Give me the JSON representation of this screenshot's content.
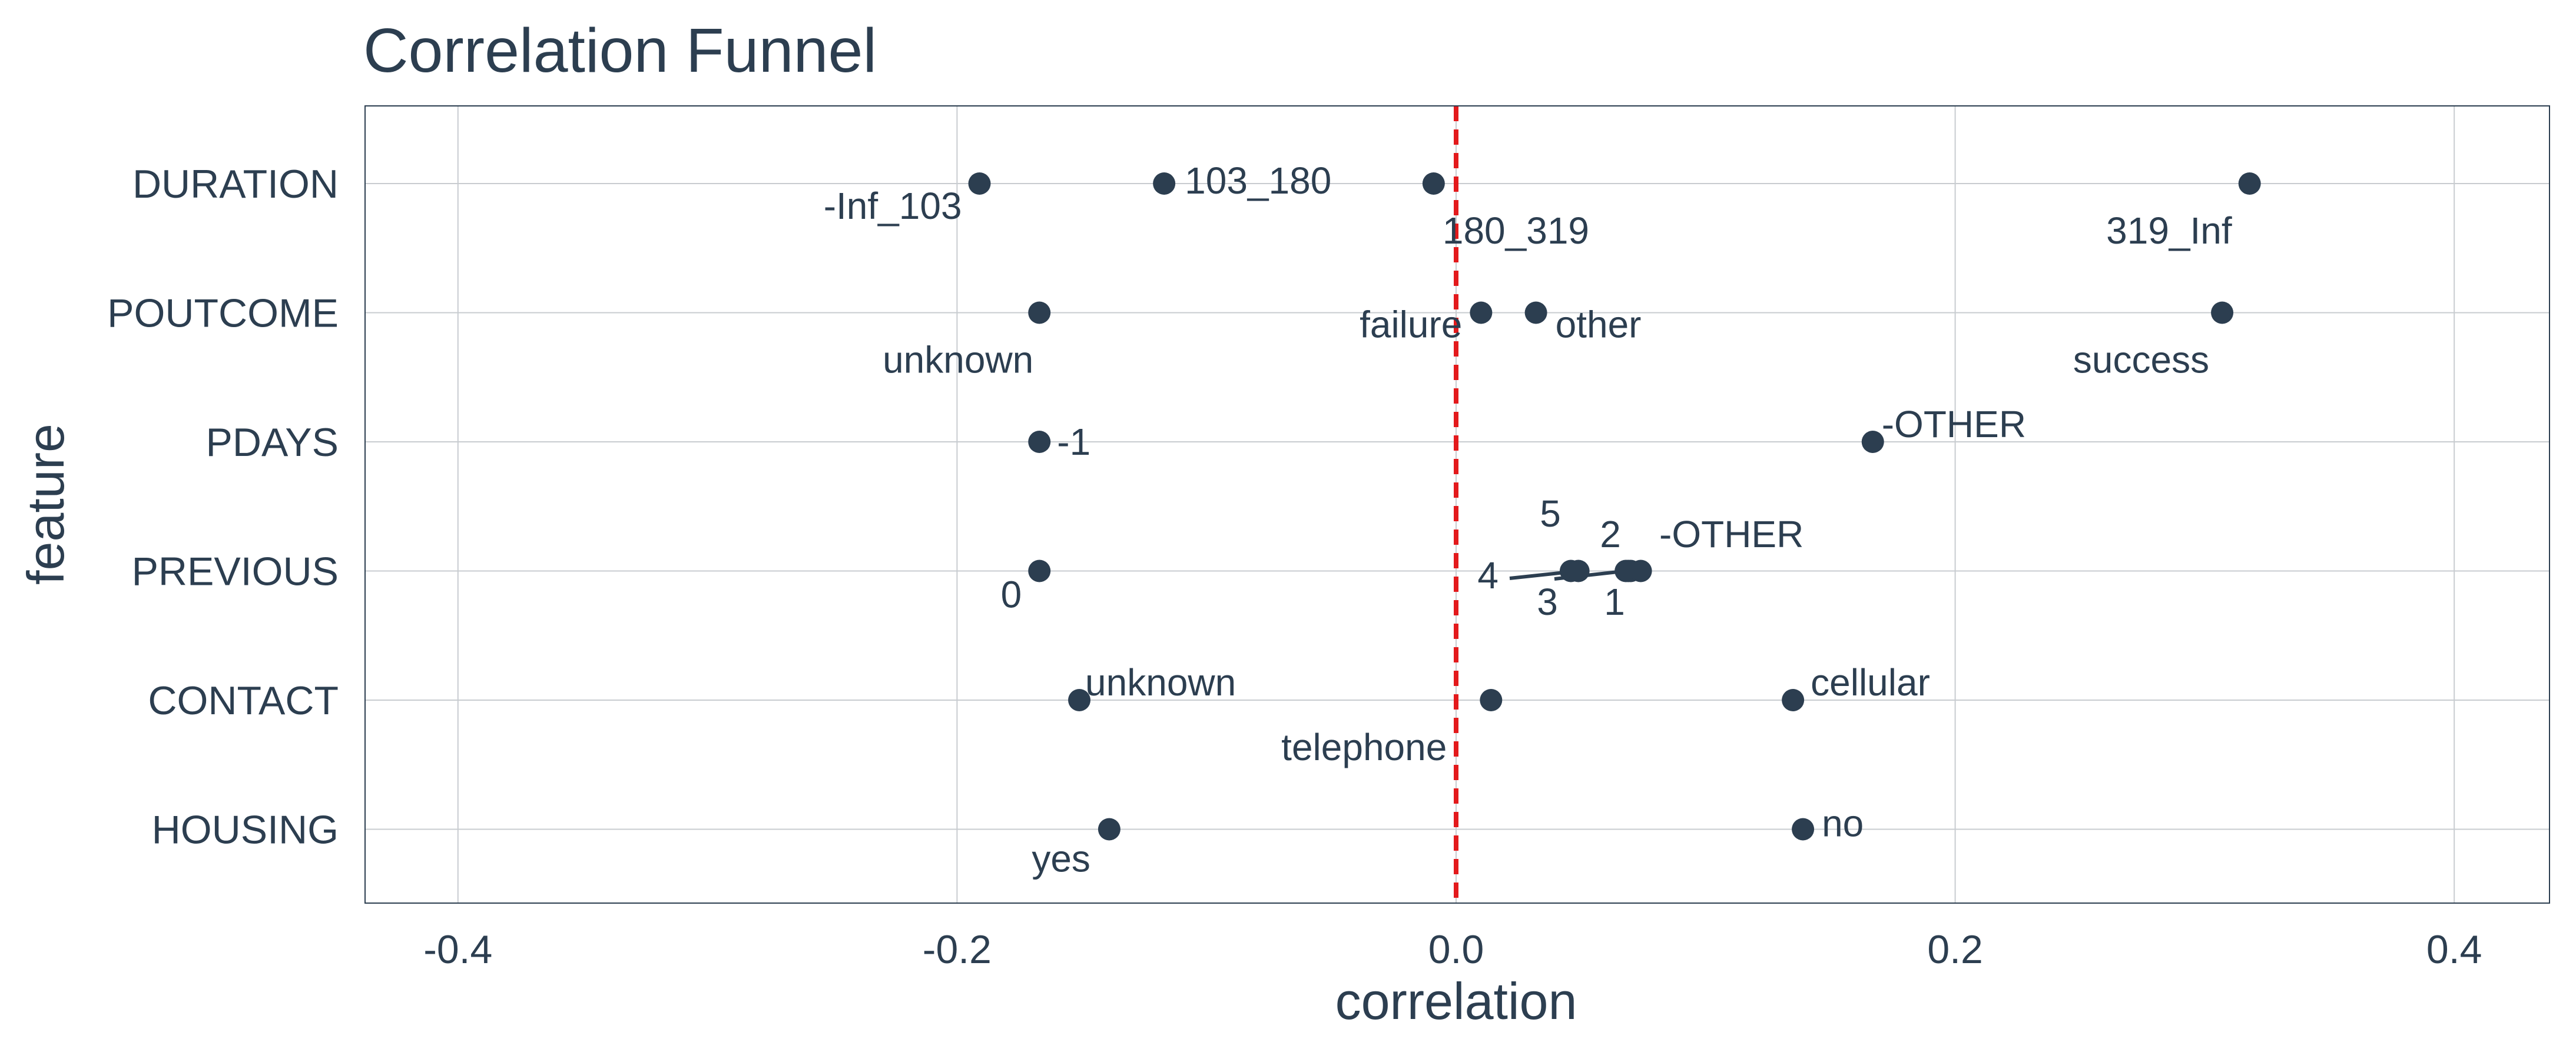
{
  "chart_data": {
    "type": "scatter",
    "title": "Correlation Funnel",
    "xlabel": "correlation",
    "ylabel": "feature",
    "xlim": [
      -0.44,
      0.44
    ],
    "x_ticks": [
      -0.4,
      -0.2,
      0.0,
      0.2,
      0.4
    ],
    "x_tick_labels": [
      "-0.4",
      "-0.2",
      "0.0",
      "0.2",
      "0.4"
    ],
    "features": [
      "DURATION",
      "POUTCOME",
      "PDAYS",
      "PREVIOUS",
      "CONTACT",
      "HOUSING"
    ],
    "grid": true,
    "reference_line": {
      "x": 0.0,
      "color": "#e31a1c",
      "style": "dashed"
    },
    "point_color": "#2c3e50",
    "points": [
      {
        "feature": "DURATION",
        "label": "-Inf_103",
        "x": -0.191
      },
      {
        "feature": "DURATION",
        "label": "103_180",
        "x": -0.117
      },
      {
        "feature": "DURATION",
        "label": "180_319",
        "x": -0.009
      },
      {
        "feature": "DURATION",
        "label": "319_Inf",
        "x": 0.318
      },
      {
        "feature": "POUTCOME",
        "label": "unknown",
        "x": -0.167
      },
      {
        "feature": "POUTCOME",
        "label": "failure",
        "x": 0.01
      },
      {
        "feature": "POUTCOME",
        "label": "other",
        "x": 0.032
      },
      {
        "feature": "POUTCOME",
        "label": "success",
        "x": 0.307
      },
      {
        "feature": "PDAYS",
        "label": "-1",
        "x": -0.167
      },
      {
        "feature": "PDAYS",
        "label": "-OTHER",
        "x": 0.167
      },
      {
        "feature": "PREVIOUS",
        "label": "0",
        "x": -0.167
      },
      {
        "feature": "PREVIOUS",
        "label": "5",
        "x": 0.046
      },
      {
        "feature": "PREVIOUS",
        "label": "4",
        "x": 0.049
      },
      {
        "feature": "PREVIOUS",
        "label": "3",
        "x": 0.068
      },
      {
        "feature": "PREVIOUS",
        "label": "2",
        "x": 0.069
      },
      {
        "feature": "PREVIOUS",
        "label": "1",
        "x": 0.07
      },
      {
        "feature": "PREVIOUS",
        "label": "-OTHER",
        "x": 0.074
      },
      {
        "feature": "CONTACT",
        "label": "unknown",
        "x": -0.151
      },
      {
        "feature": "CONTACT",
        "label": "telephone",
        "x": 0.014
      },
      {
        "feature": "CONTACT",
        "label": "cellular",
        "x": 0.135
      },
      {
        "feature": "HOUSING",
        "label": "yes",
        "x": -0.139
      },
      {
        "feature": "HOUSING",
        "label": "no",
        "x": 0.139
      }
    ]
  }
}
